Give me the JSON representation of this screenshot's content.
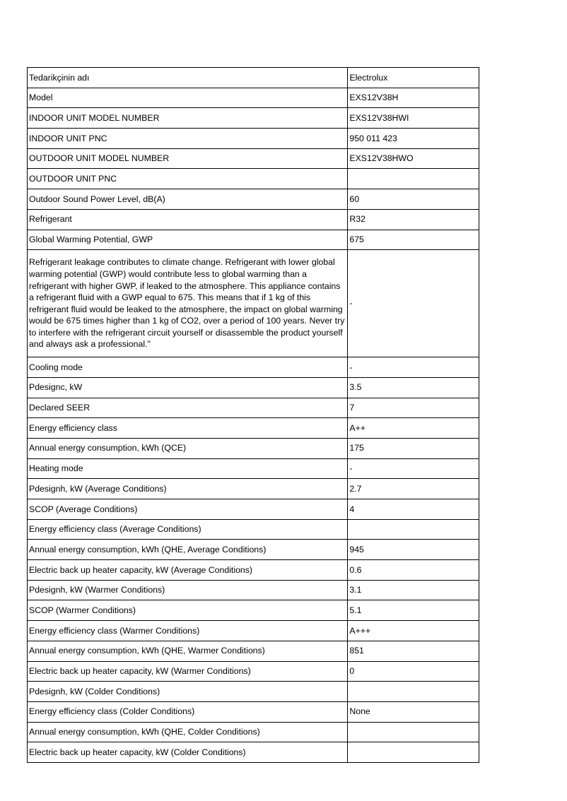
{
  "rows": [
    {
      "label": "Tedarikçinin adı",
      "value": "Electrolux"
    },
    {
      "label": "Model",
      "value": "EXS12V38H"
    },
    {
      "label": "INDOOR UNIT MODEL NUMBER",
      "value": "EXS12V38HWI"
    },
    {
      "label": "INDOOR UNIT PNC",
      "value": "950 011 423"
    },
    {
      "label": "OUTDOOR UNIT MODEL NUMBER",
      "value": "EXS12V38HWO"
    },
    {
      "label": "OUTDOOR UNIT PNC",
      "value": ""
    },
    {
      "label": "Outdoor Sound Power Level, dB(A)",
      "value": "60"
    },
    {
      "label": "Refrigerant",
      "value": "R32"
    },
    {
      "label": "Global Warming Potential, GWP",
      "value": "675"
    },
    {
      "label": "Refrigerant leakage contributes to climate change. Refrigerant with lower global warming potential (GWP) would contribute less to global warming than a refrigerant with higher GWP, if leaked to the atmosphere. This appliance contains a refrigerant fluid with a GWP equal to 675. This means that if 1 kg of this refrigerant fluid would be leaked to the atmosphere, the impact on global warming would be 675 times higher than 1 kg of CO2, over a period of 100 years. Never try to interfere with the refrigerant circuit yourself or disassemble the product yourself and always ask a professional.\"",
      "value": "-"
    },
    {
      "label": "Cooling mode",
      "value": "-"
    },
    {
      "label": "Pdesignc, kW",
      "value": "3.5"
    },
    {
      "label": "Declared SEER",
      "value": "7"
    },
    {
      "label": "Energy efficiency class",
      "value": "A++"
    },
    {
      "label": "Annual energy consumption, kWh (QCE)",
      "value": "175"
    },
    {
      "label": "Heating mode",
      "value": "-"
    },
    {
      "label": "Pdesignh, kW (Average Conditions)",
      "value": "2.7"
    },
    {
      "label": "SCOP (Average Conditions)",
      "value": "4"
    },
    {
      "label": "Energy efficiency class (Average Conditions)",
      "value": ""
    },
    {
      "label": "Annual energy consumption, kWh (QHE, Average Conditions)",
      "value": "945"
    },
    {
      "label": "Electric back up heater capacity, kW (Average Conditions)",
      "value": "0.6"
    },
    {
      "label": "Pdesignh, kW (Warmer Conditions)",
      "value": "3.1"
    },
    {
      "label": "SCOP (Warmer Conditions)",
      "value": "5.1"
    },
    {
      "label": "Energy efficiency class (Warmer Conditions)",
      "value": "A+++"
    },
    {
      "label": "Annual energy consumption, kWh (QHE, Warmer Conditions)",
      "value": "851"
    },
    {
      "label": "Electric back up heater capacity, kW (Warmer Conditions)",
      "value": "0"
    },
    {
      "label": "Pdesignh, kW (Colder Conditions)",
      "value": ""
    },
    {
      "label": "Energy efficiency class (Colder Conditions)",
      "value": "None"
    },
    {
      "label": "Annual energy consumption, kWh (QHE, Colder Conditions)",
      "value": ""
    },
    {
      "label": "Electric back up heater capacity, kW (Colder Conditions)",
      "value": ""
    }
  ]
}
